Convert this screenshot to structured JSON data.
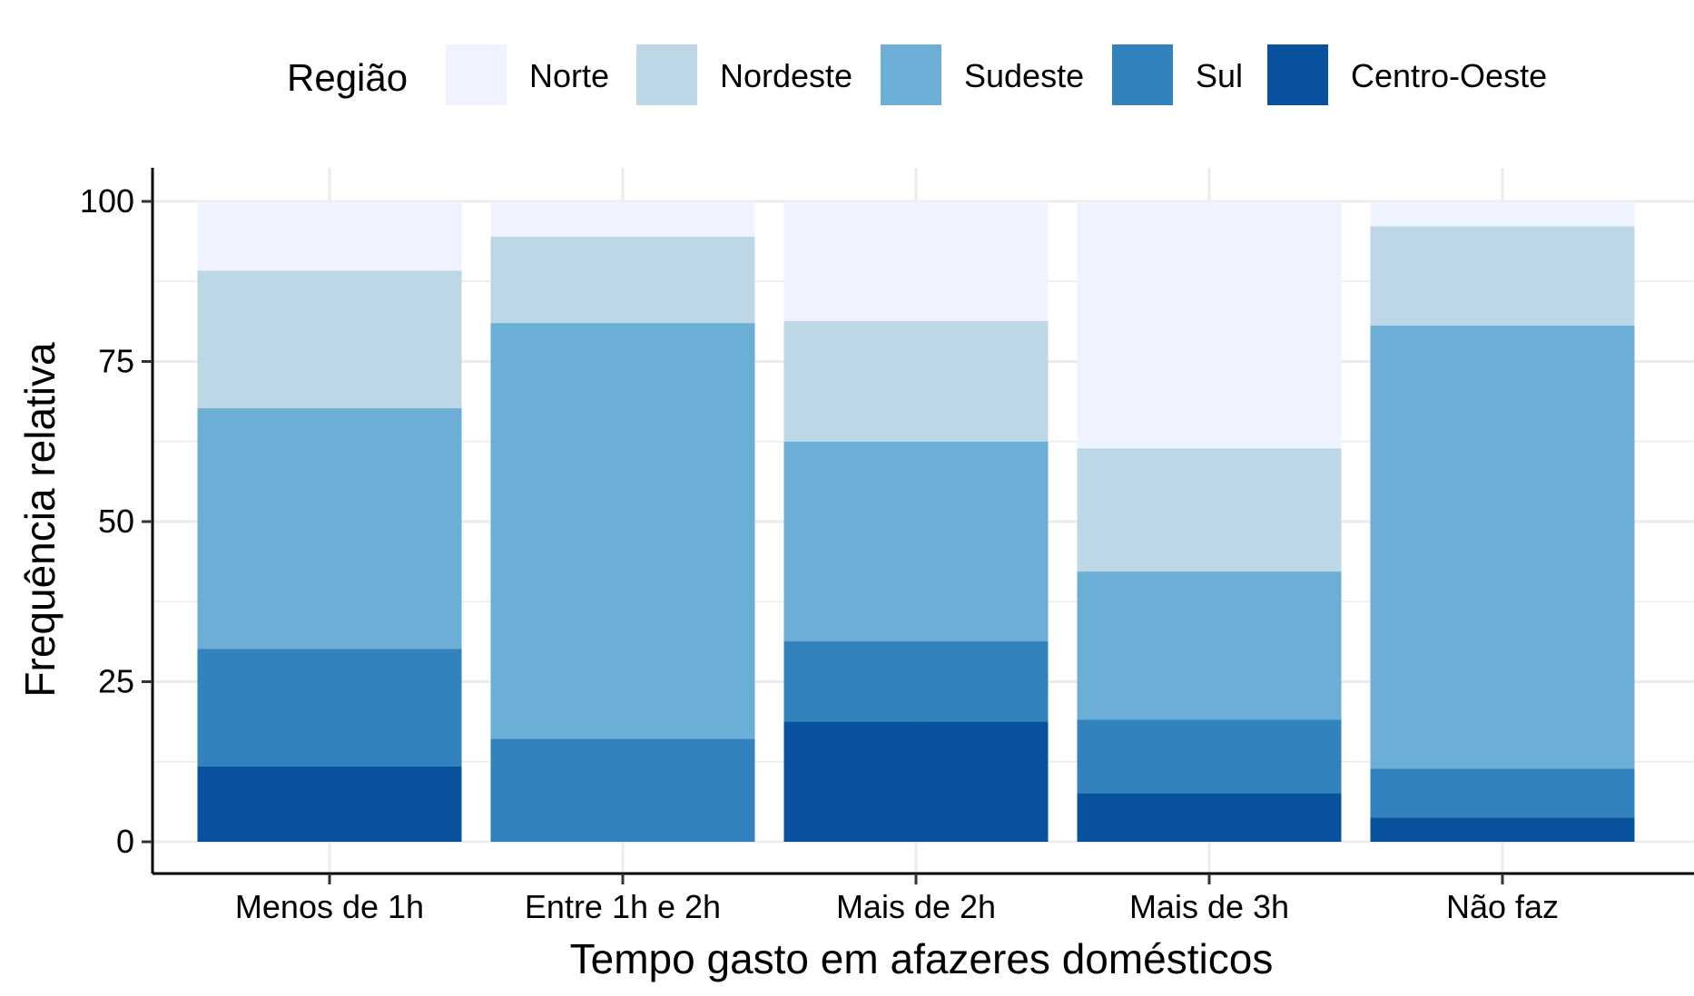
{
  "chart_data": {
    "type": "bar",
    "stacked": true,
    "xlabel": "Tempo gasto em afazeres domésticos",
    "ylabel": "Frequência relativa",
    "ylim": [
      0,
      100
    ],
    "yticks": [
      "0",
      "25",
      "50",
      "75",
      "100"
    ],
    "ytick_values": [
      0,
      25,
      50,
      75,
      100
    ],
    "categories": [
      "Menos de 1h",
      "Entre 1h e 2h",
      "Mais de 2h",
      "Mais de 3h",
      "Não faz"
    ],
    "grid": true,
    "legend": {
      "title": "Região",
      "placement": "top"
    },
    "series": [
      {
        "name": "Norte",
        "color": "#eff3ff",
        "values": [
          10.8,
          5.5,
          18.7,
          38.6,
          3.9
        ]
      },
      {
        "name": "Nordeste",
        "color": "#bdd7e7",
        "values": [
          21.5,
          13.5,
          18.8,
          19.2,
          15.5
        ]
      },
      {
        "name": "Sudeste",
        "color": "#6baed6",
        "values": [
          37.6,
          64.9,
          31.2,
          23.1,
          69.2
        ]
      },
      {
        "name": "Sul",
        "color": "#3182bd",
        "values": [
          18.3,
          16.1,
          12.5,
          11.5,
          7.6
        ]
      },
      {
        "name": "Centro-Oeste",
        "color": "#08519c",
        "values": [
          11.8,
          0.0,
          18.8,
          7.6,
          3.8
        ]
      }
    ]
  }
}
